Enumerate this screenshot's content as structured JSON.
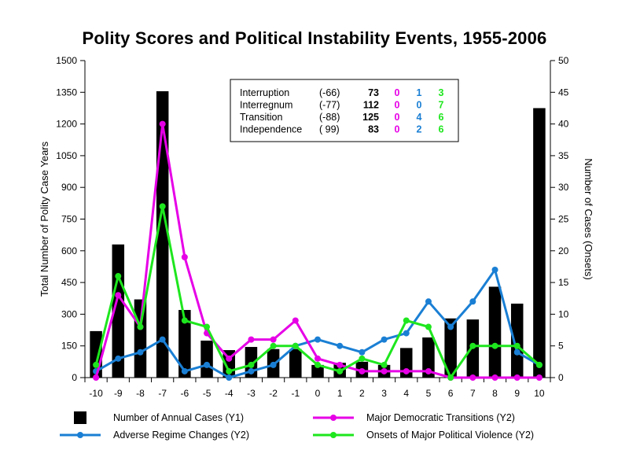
{
  "chart_data": {
    "type": "bar",
    "title": "Polity Scores and Political Instability Events, 1955-2006",
    "ylabel": "Total Number of Polity Case Years",
    "y2label": "Number of Cases (Onsets)",
    "x": [
      -10,
      -9,
      -8,
      -7,
      -6,
      -5,
      -4,
      -3,
      -2,
      -1,
      0,
      1,
      2,
      3,
      4,
      5,
      6,
      7,
      8,
      9,
      10
    ],
    "ylim": [
      0,
      1500
    ],
    "y2lim": [
      0,
      50
    ],
    "yticks": [
      0,
      150,
      300,
      450,
      600,
      750,
      900,
      1050,
      1200,
      1350,
      1500
    ],
    "y2ticks": [
      0,
      5,
      10,
      15,
      20,
      25,
      30,
      35,
      40,
      45,
      50
    ],
    "series": [
      {
        "name": "Number of Annual Cases (Y1)",
        "type": "bar",
        "axis": "y1",
        "color": "#000000",
        "values": [
          220,
          630,
          370,
          1355,
          320,
          175,
          130,
          145,
          135,
          135,
          60,
          70,
          75,
          60,
          140,
          190,
          280,
          275,
          430,
          350,
          1275
        ]
      },
      {
        "name": "Adverse Regime Changes (Y2)",
        "type": "line",
        "axis": "y2",
        "color": "#1a7fd4",
        "values": [
          1,
          3,
          4,
          6,
          1,
          2,
          0,
          1,
          2,
          5,
          6,
          5,
          4,
          6,
          7,
          12,
          8,
          12,
          17,
          4,
          2
        ]
      },
      {
        "name": "Major Democratic Transitions (Y2)",
        "type": "line",
        "axis": "y2",
        "color": "#e600e6",
        "values": [
          0,
          13,
          8,
          40,
          19,
          7,
          3,
          6,
          6,
          9,
          3,
          2,
          1,
          1,
          1,
          1,
          0,
          0,
          0,
          0,
          0
        ]
      },
      {
        "name": "Onsets of Major Political Violence (Y2)",
        "type": "line",
        "axis": "y2",
        "color": "#1ee61e",
        "values": [
          2,
          16,
          8,
          27,
          9,
          8,
          1,
          2,
          5,
          5,
          2,
          1,
          3,
          2,
          9,
          8,
          0,
          5,
          5,
          5,
          2
        ]
      }
    ],
    "legend_position": "bottom",
    "special_codes": {
      "rows": [
        {
          "label": "Interruption",
          "code": "(-66)",
          "cases": "73",
          "democratic": "0",
          "adverse": "1",
          "violence": "3"
        },
        {
          "label": "Interregnum",
          "code": "(-77)",
          "cases": "112",
          "democratic": "0",
          "adverse": "0",
          "violence": "7"
        },
        {
          "label": "Transition",
          "code": "(-88)",
          "cases": "125",
          "democratic": "0",
          "adverse": "4",
          "violence": "6"
        },
        {
          "label": "Independence",
          "code": "( 99)",
          "cases": "83",
          "democratic": "0",
          "adverse": "2",
          "violence": "6"
        }
      ]
    }
  }
}
